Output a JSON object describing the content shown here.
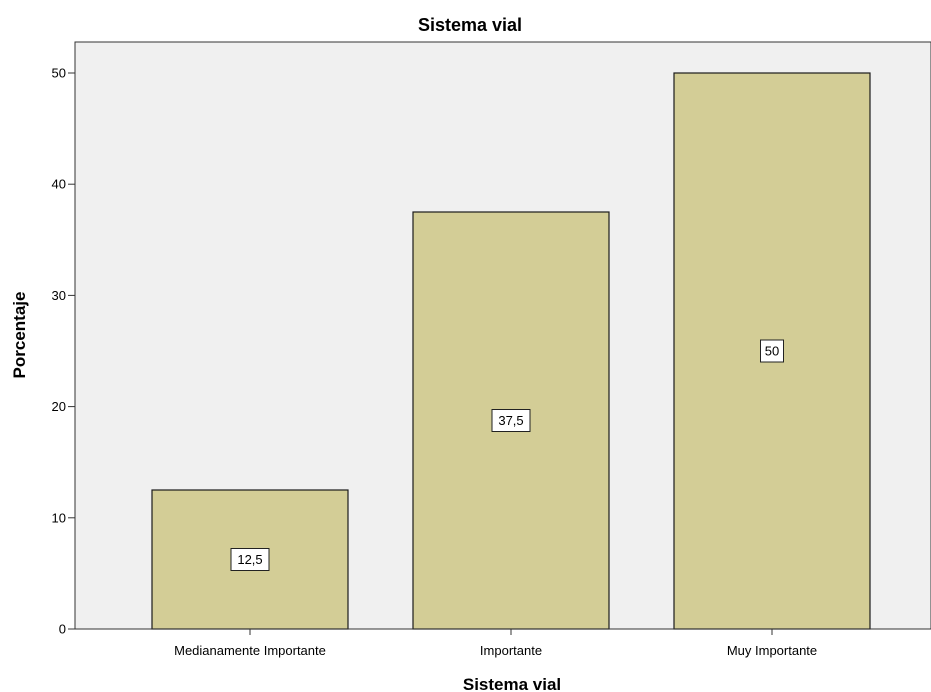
{
  "chart_data": {
    "type": "bar",
    "title": "Sistema vial",
    "xlabel": "Sistema vial",
    "ylabel": "Porcentaje",
    "categories": [
      "Medianamente Importante",
      "Importante",
      "Muy Importante"
    ],
    "values": [
      12.5,
      37.5,
      50
    ],
    "data_labels": [
      "12,5",
      "37,5",
      "50"
    ],
    "yticks": [
      0,
      10,
      20,
      30,
      40,
      50
    ],
    "ylim": [
      0,
      50
    ],
    "grid": false,
    "legend": "none",
    "colors": {
      "bar_fill": "#d3cd96",
      "bar_stroke": "#1a1a1a",
      "plot_background": "#f0f0f0",
      "label_box_fill": "#ffffff"
    }
  }
}
